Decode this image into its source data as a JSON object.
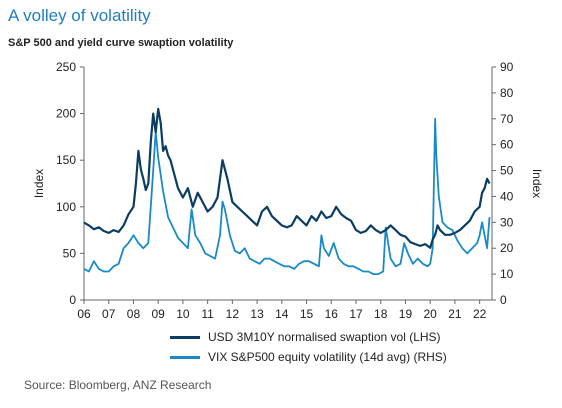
{
  "title": "A volley of volatility",
  "subtitle": "S&P 500 and yield curve swaption volatility",
  "source": "Source: Bloomberg, ANZ Research",
  "colors": {
    "swaption": "#0b3d63",
    "vix": "#1a8ac6",
    "axis": "#666666"
  },
  "chart_data": {
    "type": "line",
    "title": "A volley of volatility",
    "subtitle": "S&P 500 and yield curve swaption volatility",
    "xlabel": "",
    "x_ticks": [
      "06",
      "07",
      "08",
      "09",
      "10",
      "11",
      "12",
      "13",
      "14",
      "15",
      "16",
      "17",
      "18",
      "19",
      "20",
      "21",
      "22"
    ],
    "xlim": [
      2006.0,
      2022.5
    ],
    "left_axis": {
      "label": "Index",
      "ylim": [
        0,
        250
      ],
      "ticks": [
        "0",
        "50",
        "100",
        "150",
        "200",
        "250"
      ]
    },
    "right_axis": {
      "label": "Index",
      "ylim": [
        0,
        90
      ],
      "ticks": [
        "0",
        "10",
        "20",
        "30",
        "40",
        "50",
        "60",
        "70",
        "80",
        "90"
      ]
    },
    "grid": false,
    "legend_placement": "bottom",
    "series": [
      {
        "name": "USD 3M10Y normalised swaption vol (LHS)",
        "axis": "left",
        "color": "#0b3d63",
        "x": [
          2006.0,
          2006.2,
          2006.4,
          2006.6,
          2006.8,
          2007.0,
          2007.2,
          2007.4,
          2007.6,
          2007.8,
          2008.0,
          2008.1,
          2008.2,
          2008.3,
          2008.4,
          2008.5,
          2008.6,
          2008.7,
          2008.8,
          2008.9,
          2009.0,
          2009.1,
          2009.2,
          2009.3,
          2009.4,
          2009.5,
          2009.6,
          2009.8,
          2010.0,
          2010.2,
          2010.4,
          2010.6,
          2010.8,
          2011.0,
          2011.2,
          2011.4,
          2011.6,
          2011.8,
          2012.0,
          2012.2,
          2012.4,
          2012.6,
          2012.8,
          2013.0,
          2013.2,
          2013.4,
          2013.6,
          2013.8,
          2014.0,
          2014.2,
          2014.4,
          2014.6,
          2014.8,
          2015.0,
          2015.2,
          2015.4,
          2015.6,
          2015.8,
          2016.0,
          2016.2,
          2016.4,
          2016.6,
          2016.8,
          2017.0,
          2017.2,
          2017.4,
          2017.6,
          2017.8,
          2018.0,
          2018.2,
          2018.4,
          2018.6,
          2018.8,
          2019.0,
          2019.2,
          2019.4,
          2019.6,
          2019.8,
          2020.0,
          2020.1,
          2020.2,
          2020.3,
          2020.4,
          2020.6,
          2020.8,
          2021.0,
          2021.2,
          2021.4,
          2021.6,
          2021.8,
          2022.0,
          2022.1,
          2022.2,
          2022.3,
          2022.4
        ],
        "y": [
          83,
          80,
          76,
          78,
          74,
          72,
          75,
          73,
          80,
          92,
          100,
          125,
          160,
          140,
          130,
          118,
          125,
          170,
          200,
          180,
          205,
          190,
          160,
          165,
          155,
          150,
          140,
          120,
          110,
          120,
          100,
          115,
          105,
          95,
          100,
          110,
          150,
          130,
          105,
          100,
          95,
          90,
          85,
          80,
          95,
          100,
          90,
          85,
          80,
          78,
          80,
          90,
          85,
          80,
          90,
          85,
          95,
          88,
          90,
          100,
          92,
          88,
          85,
          75,
          72,
          74,
          80,
          75,
          72,
          75,
          80,
          75,
          70,
          68,
          62,
          60,
          58,
          60,
          56,
          65,
          70,
          80,
          75,
          70,
          70,
          72,
          75,
          80,
          85,
          95,
          100,
          115,
          120,
          130,
          125
        ]
      },
      {
        "name": "VIX S&P500 equity volatility (14d avg) (RHS)",
        "axis": "right",
        "color": "#1a8ac6",
        "x": [
          2006.0,
          2006.2,
          2006.4,
          2006.6,
          2006.8,
          2007.0,
          2007.2,
          2007.4,
          2007.6,
          2007.8,
          2008.0,
          2008.2,
          2008.4,
          2008.6,
          2008.8,
          2008.9,
          2009.0,
          2009.2,
          2009.4,
          2009.6,
          2009.8,
          2010.0,
          2010.2,
          2010.35,
          2010.5,
          2010.7,
          2010.9,
          2011.1,
          2011.3,
          2011.5,
          2011.6,
          2011.7,
          2011.8,
          2011.9,
          2012.1,
          2012.3,
          2012.5,
          2012.7,
          2012.9,
          2013.1,
          2013.3,
          2013.5,
          2013.7,
          2013.9,
          2014.1,
          2014.3,
          2014.5,
          2014.7,
          2014.9,
          2015.1,
          2015.3,
          2015.5,
          2015.6,
          2015.7,
          2015.9,
          2016.1,
          2016.3,
          2016.5,
          2016.7,
          2016.9,
          2017.1,
          2017.3,
          2017.5,
          2017.7,
          2017.9,
          2018.1,
          2018.2,
          2018.4,
          2018.6,
          2018.8,
          2018.95,
          2019.1,
          2019.3,
          2019.5,
          2019.7,
          2019.9,
          2020.0,
          2020.1,
          2020.2,
          2020.25,
          2020.35,
          2020.5,
          2020.7,
          2020.9,
          2021.1,
          2021.3,
          2021.5,
          2021.7,
          2021.9,
          2022.0,
          2022.1,
          2022.2,
          2022.3,
          2022.4
        ],
        "y": [
          12,
          11,
          15,
          12,
          11,
          11,
          13,
          14,
          20,
          22,
          25,
          22,
          20,
          22,
          50,
          65,
          55,
          42,
          32,
          28,
          24,
          22,
          20,
          35,
          25,
          22,
          18,
          17,
          16,
          25,
          38,
          35,
          30,
          25,
          19,
          18,
          20,
          16,
          15,
          14,
          16,
          16,
          15,
          14,
          13,
          13,
          12,
          14,
          15,
          15,
          14,
          13,
          25,
          20,
          17,
          22,
          16,
          14,
          13,
          13,
          12,
          11,
          11,
          10,
          10,
          11,
          28,
          16,
          13,
          14,
          22,
          18,
          14,
          16,
          14,
          13,
          14,
          20,
          70,
          55,
          40,
          30,
          28,
          27,
          23,
          20,
          18,
          20,
          22,
          25,
          30,
          25,
          20,
          32
        ]
      }
    ]
  }
}
